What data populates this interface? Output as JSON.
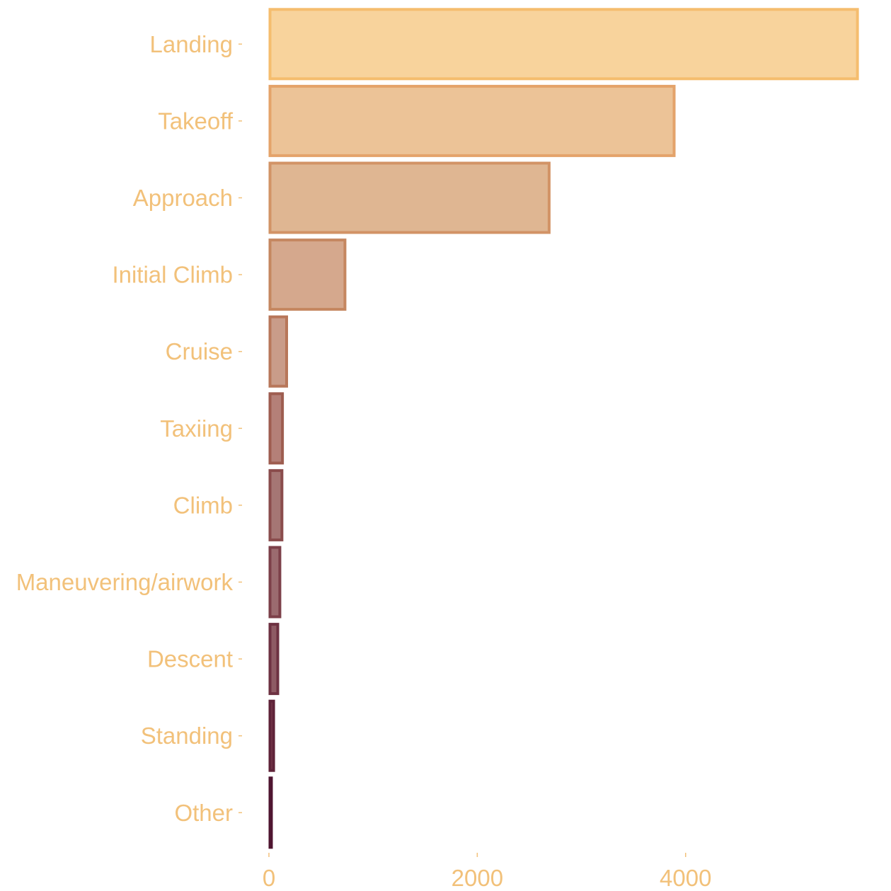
{
  "chart_data": {
    "type": "bar",
    "orientation": "horizontal",
    "categories": [
      "Landing",
      "Takeoff",
      "Approach",
      "Initial Climb",
      "Cruise",
      "Taxiing",
      "Climb",
      "Maneuvering/airwork",
      "Descent",
      "Standing",
      "Other"
    ],
    "values": [
      5660,
      3900,
      2700,
      740,
      180,
      140,
      135,
      115,
      95,
      55,
      30
    ],
    "xlim": [
      0,
      5700
    ],
    "x_ticks": [
      0,
      2000,
      4000
    ],
    "title": "",
    "xlabel": "",
    "ylabel": "",
    "grid": false,
    "legend": "none",
    "colors": {
      "fill": [
        "#f8d39c",
        "#ecc397",
        "#dfb692",
        "#d5a88d",
        "#c99c89",
        "#b48078",
        "#a57674",
        "#9b6b6f",
        "#8e5b64",
        "#7c3d50",
        "#621e3c"
      ],
      "stroke": [
        "#f5bd6e",
        "#e4a36a",
        "#d29366",
        "#c58760",
        "#b8775a",
        "#9e5d50",
        "#8a4c4c",
        "#7c4049",
        "#6e3242",
        "#5f2339",
        "#4f1530"
      ],
      "tick_text": "#f2c17a"
    }
  }
}
